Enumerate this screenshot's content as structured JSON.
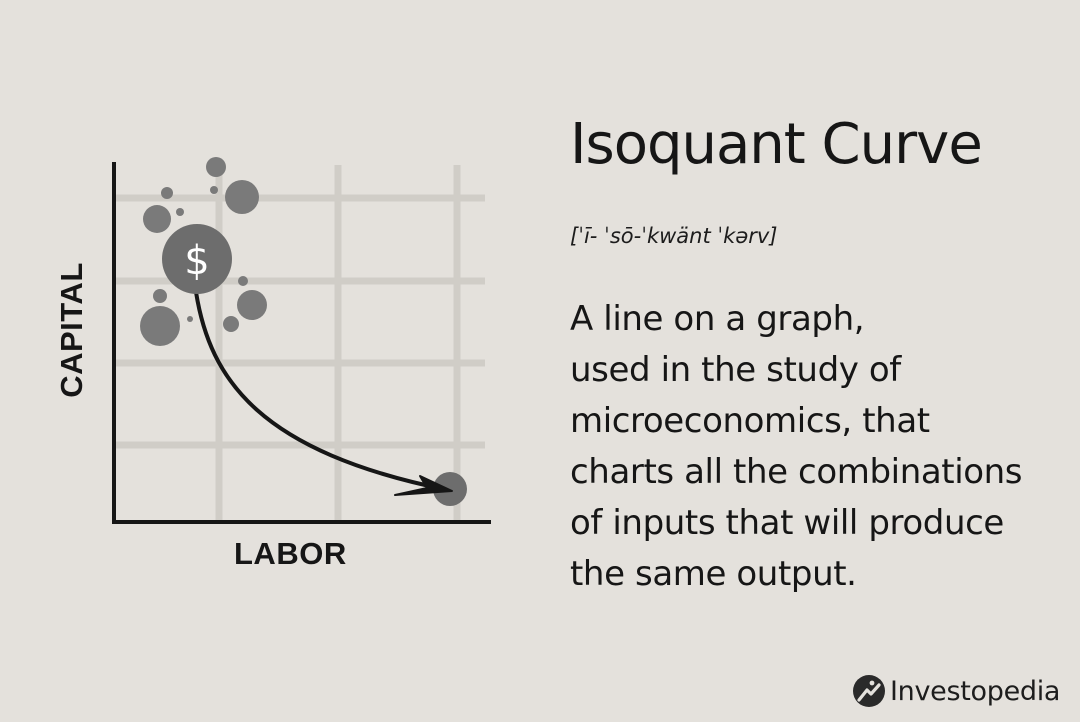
{
  "title": "Isoquant Curve",
  "pronunciation": "[ˈī- ˈsō-ˈkwänt ˈkərv]",
  "definition_lines": [
    "A line on a graph,",
    "used in the study of",
    "microeconomics, that",
    "charts all the combinations",
    "of inputs that will produce",
    "the same output."
  ],
  "diagram": {
    "y_axis_label": "CAPITAL",
    "x_axis_label": "LABOR",
    "start_marker_symbol": "$"
  },
  "brand": {
    "name": "Investopedia",
    "icon": "investopedia-logo-icon"
  },
  "colors": {
    "background": "#e4e1dc",
    "text": "#161616",
    "grid": "#cfccc6",
    "bubbles": "#7a7a7a"
  }
}
